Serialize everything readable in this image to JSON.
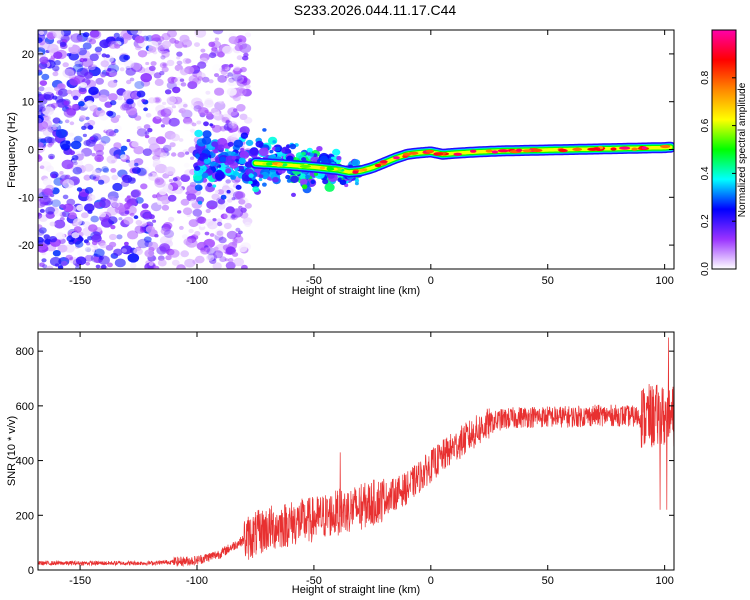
{
  "figure": {
    "title": "S233.2026.044.11.17.C44"
  },
  "chart_data": [
    {
      "type": "heatmap",
      "name": "spectrogram",
      "xlabel": "Height of straight line (km)",
      "ylabel": "Frequency (Hz)",
      "xlim": [
        -168,
        104
      ],
      "ylim": [
        -25,
        25
      ],
      "xticks": [
        -150,
        -100,
        -50,
        0,
        50,
        100
      ],
      "xtick_labels": [
        "-150",
        "-100",
        "-50",
        "0",
        "50",
        "100"
      ],
      "yticks": [
        -20,
        -10,
        0,
        10,
        20
      ],
      "ytick_labels": [
        "-20",
        "-10",
        "0",
        "10",
        "20"
      ],
      "ridge": {
        "x": [
          -100,
          -90,
          -80,
          -70,
          -60,
          -50,
          -40,
          -35,
          -30,
          -25,
          -20,
          -15,
          -10,
          -5,
          0,
          5,
          10,
          20,
          30,
          40,
          50,
          60,
          70,
          80,
          90,
          100,
          103
        ],
        "freq": [
          -2.5,
          -2.5,
          -2.7,
          -3.0,
          -3.3,
          -3.7,
          -4.2,
          -4.7,
          -4.5,
          -3.8,
          -2.8,
          -1.8,
          -1.0,
          -0.7,
          -0.5,
          -1.0,
          -0.8,
          -0.5,
          -0.3,
          -0.2,
          -0.1,
          0.0,
          0.1,
          0.2,
          0.3,
          0.4,
          0.5
        ]
      }
    },
    {
      "type": "bar",
      "name": "colorbar",
      "label": "Normalized spectral amplitude",
      "range": [
        0,
        1
      ],
      "ticks": [
        0.0,
        0.2,
        0.4,
        0.6,
        0.8
      ],
      "tick_labels": [
        "0.0",
        "0.2",
        "0.4",
        "0.6",
        "0.8"
      ],
      "colors": [
        "#ffffff",
        "#9a33ff",
        "#0000ff",
        "#00ffff",
        "#00ff00",
        "#ffff00",
        "#ff8800",
        "#ff0000",
        "#ff00aa"
      ]
    },
    {
      "type": "line",
      "name": "snr",
      "xlabel": "Height of straight line (km)",
      "ylabel": "SNR (10 * v/v)",
      "xlim": [
        -168,
        104
      ],
      "ylim": [
        0,
        870
      ],
      "xticks": [
        -150,
        -100,
        -50,
        0,
        50,
        100
      ],
      "xtick_labels": [
        "-150",
        "-100",
        "-50",
        "0",
        "50",
        "100"
      ],
      "yticks": [
        0,
        200,
        400,
        600,
        800
      ],
      "ytick_labels": [
        "0",
        "200",
        "400",
        "600",
        "800"
      ],
      "line_color": "#e83030",
      "trend": {
        "x": [
          -168,
          -120,
          -100,
          -90,
          -80,
          -70,
          -60,
          -50,
          -40,
          -30,
          -20,
          -10,
          0,
          10,
          20,
          25,
          30,
          40,
          50,
          60,
          70,
          80,
          90,
          100,
          104
        ],
        "y": [
          25,
          25,
          35,
          60,
          110,
          150,
          170,
          185,
          210,
          230,
          260,
          300,
          380,
          450,
          510,
          535,
          550,
          560,
          560,
          560,
          565,
          565,
          560,
          560,
          560
        ]
      }
    }
  ]
}
